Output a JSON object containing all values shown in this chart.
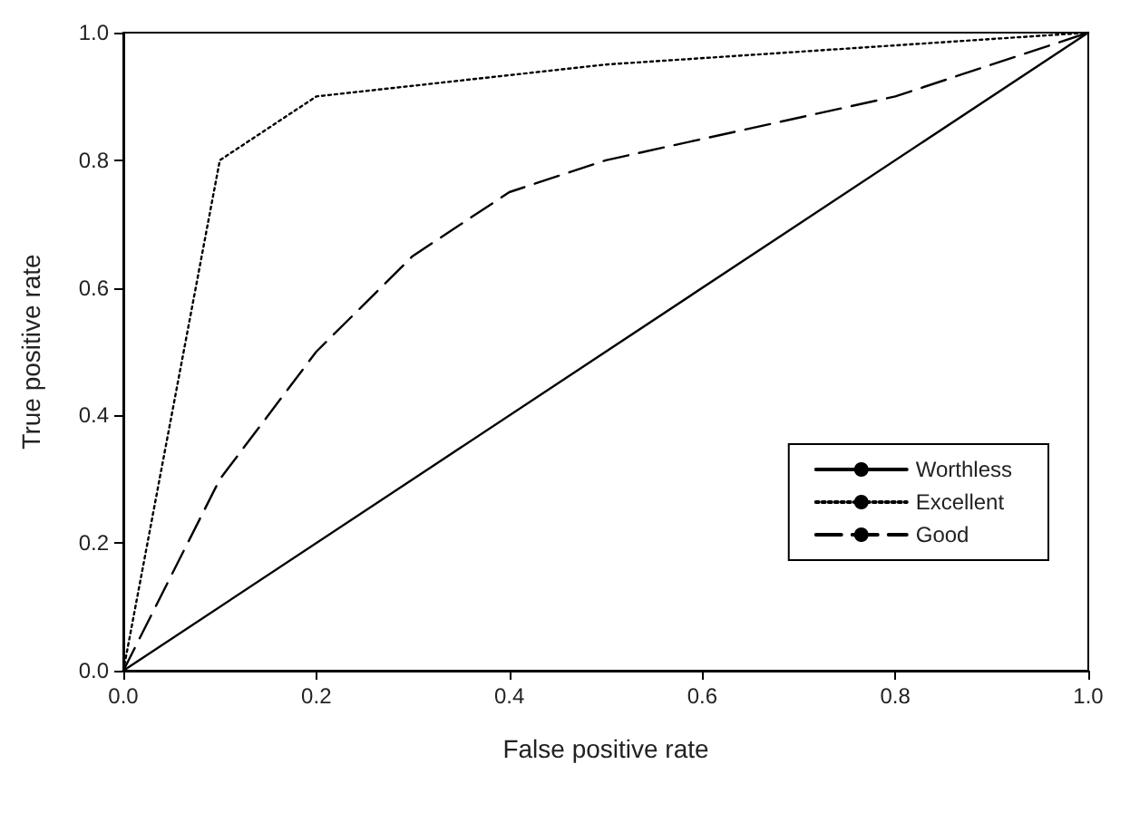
{
  "chart_data": {
    "type": "line",
    "xlabel": "False positive rate",
    "ylabel": "True positive rate",
    "xlim": [
      0,
      1
    ],
    "ylim": [
      0,
      1
    ],
    "xticks": [
      {
        "value": 0,
        "label": "0.0"
      },
      {
        "value": 0.2,
        "label": "0.2"
      },
      {
        "value": 0.4,
        "label": "0.4"
      },
      {
        "value": 0.6,
        "label": "0.6"
      },
      {
        "value": 0.8,
        "label": "0.8"
      },
      {
        "value": 1,
        "label": "1.0"
      }
    ],
    "yticks": [
      {
        "value": 0,
        "label": "0.0"
      },
      {
        "value": 0.2,
        "label": "0.2"
      },
      {
        "value": 0.4,
        "label": "0.4"
      },
      {
        "value": 0.6,
        "label": "0.6"
      },
      {
        "value": 0.8,
        "label": "0.8"
      },
      {
        "value": 1,
        "label": "1.0"
      }
    ],
    "grid": false,
    "legend": "right",
    "marker": "none",
    "series": [
      {
        "name": "Worthless",
        "color": "#000000",
        "line_style": "solid",
        "x": [
          0,
          1
        ],
        "values": [
          0,
          1
        ]
      },
      {
        "name": "Excellent",
        "color": "#000000",
        "line_style": "dotted",
        "x": [
          0,
          0.1,
          0.2,
          0.5,
          1
        ],
        "values": [
          0,
          0.8,
          0.9,
          0.95,
          1
        ]
      },
      {
        "name": "Good",
        "color": "#000000",
        "line_style": "dashed",
        "x": [
          0,
          0.1,
          0.2,
          0.3,
          0.4,
          0.5,
          0.8,
          1
        ],
        "values": [
          0,
          0.3,
          0.5,
          0.65,
          0.75,
          0.8,
          0.9,
          1
        ]
      }
    ]
  }
}
